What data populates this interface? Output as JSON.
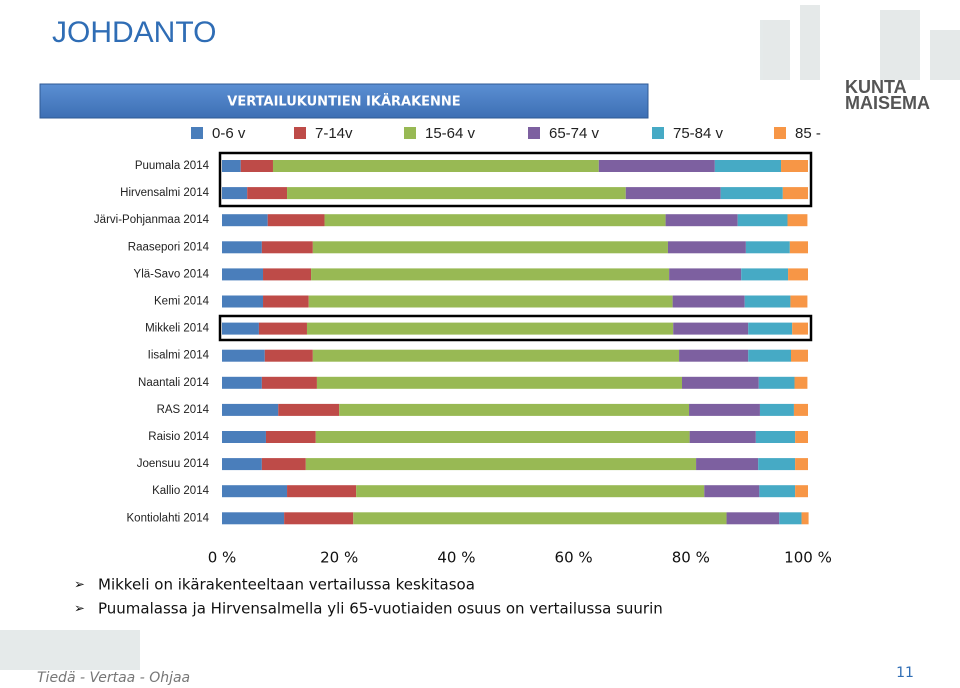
{
  "slide_title": "JOHDANTO",
  "logo": [
    "KUNTA",
    "MAISEMA"
  ],
  "chart_data": {
    "type": "stacked_bar_horizontal",
    "title": "VERTAILUKUNTIEN IKÄRAKENNE",
    "categories": [
      "Puumala 2014",
      "Hirvensalmi 2014",
      "Järvi-Pohjanmaa 2014",
      "Raasepori 2014",
      "Ylä-Savo 2014",
      "Kemi 2014",
      "Mikkeli 2014",
      "Iisalmi 2014",
      "Naantali 2014",
      "RAS 2014",
      "Raisio 2014",
      "Joensuu 2014",
      "Kallio 2014",
      "Kontiolahti 2014"
    ],
    "series": [
      {
        "name": "0-6 v",
        "color": "#4a7ebb",
        "values": [
          3.2,
          4.3,
          7.8,
          6.8,
          7.0,
          7.0,
          6.3,
          7.3,
          6.8,
          9.6,
          7.5,
          6.8,
          11.1,
          10.6
        ]
      },
      {
        "name": "7-14v",
        "color": "#be4b48",
        "values": [
          5.5,
          6.8,
          9.7,
          8.7,
          8.2,
          7.8,
          8.2,
          8.2,
          9.4,
          10.4,
          8.5,
          7.5,
          11.8,
          11.8
        ]
      },
      {
        "name": "15-64 v",
        "color": "#98b954",
        "values": [
          55.6,
          57.8,
          58.2,
          60.6,
          61.1,
          62.1,
          62.5,
          62.5,
          62.3,
          59.7,
          63.8,
          66.6,
          59.4,
          63.7
        ]
      },
      {
        "name": "65-74 v",
        "color": "#7d60a0",
        "values": [
          19.8,
          16.2,
          12.3,
          13.3,
          12.3,
          12.3,
          12.8,
          11.8,
          13.1,
          12.1,
          11.3,
          10.6,
          9.4,
          9.0
        ]
      },
      {
        "name": "75-84 v",
        "color": "#46aac5",
        "values": [
          11.3,
          10.6,
          8.5,
          7.5,
          8.0,
          7.8,
          7.5,
          7.3,
          6.1,
          5.8,
          6.7,
          6.3,
          6.1,
          3.8
        ]
      },
      {
        "name": "85 -",
        "color": "#f79646",
        "values": [
          4.6,
          4.3,
          3.4,
          3.1,
          3.4,
          2.9,
          2.7,
          2.9,
          2.2,
          2.4,
          2.2,
          2.2,
          2.2,
          1.2
        ]
      }
    ],
    "xlim": [
      0,
      100
    ],
    "xticks": [
      {
        "value": 0,
        "label": "0 %"
      },
      {
        "value": 20,
        "label": "20 %"
      },
      {
        "value": 40,
        "label": "40 %"
      },
      {
        "value": 60,
        "label": "60 %"
      },
      {
        "value": 80,
        "label": "80 %"
      },
      {
        "value": 100,
        "label": "100 %"
      }
    ]
  },
  "bullets": [
    "Mikkeli on ikärakenteeltaan vertailussa keskitasoa",
    "Puumalassa ja Hirvensalmella yli 65-vuotiaiden osuus on vertailussa suurin"
  ],
  "footer": "Tiedä - Vertaa - Ohjaa",
  "page_number": "11"
}
